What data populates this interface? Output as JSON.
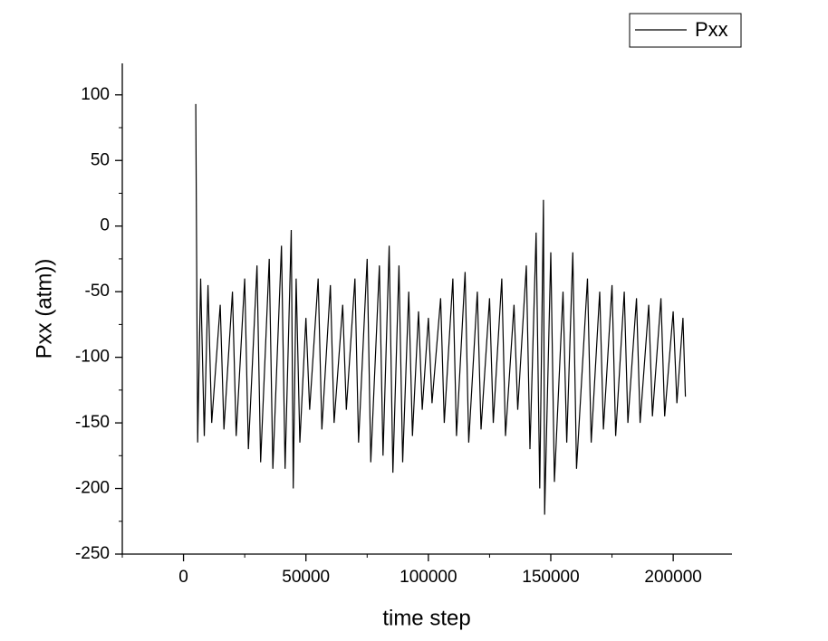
{
  "chart_data": {
    "type": "line",
    "x_label": "time step",
    "y_label": "Pxx (atm))",
    "x": [
      5000,
      5800,
      7000,
      8500,
      10000,
      11500,
      15000,
      16500,
      20000,
      21500,
      25000,
      26500,
      30000,
      31500,
      35000,
      36500,
      40000,
      41500,
      44000,
      44800,
      46000,
      47500,
      50000,
      51500,
      55000,
      56500,
      60000,
      61500,
      65000,
      66500,
      70000,
      71500,
      75000,
      76500,
      80000,
      81500,
      84000,
      85500,
      88000,
      89500,
      92000,
      93500,
      96000,
      97500,
      100000,
      101500,
      105000,
      106500,
      110000,
      111500,
      115000,
      116500,
      120000,
      121500,
      125000,
      126500,
      130000,
      131500,
      135000,
      136500,
      140000,
      141500,
      144000,
      145500,
      147000,
      147500,
      150000,
      151500,
      155000,
      156500,
      159000,
      160500,
      165000,
      166500,
      170000,
      171500,
      175000,
      176500,
      180000,
      181500,
      185000,
      186500,
      190000,
      191500,
      195000,
      196500,
      200000,
      201500,
      204000,
      205000
    ],
    "series": [
      {
        "name": "Pxx",
        "color": "#000000",
        "values": [
          93,
          -165,
          -40,
          -160,
          -45,
          -150,
          -60,
          -155,
          -50,
          -160,
          -40,
          -170,
          -30,
          -180,
          -25,
          -185,
          -15,
          -185,
          -3,
          -200,
          -40,
          -165,
          -70,
          -140,
          -40,
          -155,
          -45,
          -150,
          -60,
          -140,
          -40,
          -165,
          -25,
          -180,
          -30,
          -175,
          -15,
          -188,
          -30,
          -180,
          -50,
          -160,
          -65,
          -140,
          -70,
          -135,
          -55,
          -150,
          -40,
          -160,
          -35,
          -165,
          -50,
          -155,
          -55,
          -150,
          -40,
          -160,
          -60,
          -140,
          -30,
          -170,
          -5,
          -200,
          20,
          -220,
          -20,
          -195,
          -50,
          -165,
          -20,
          -185,
          -40,
          -165,
          -50,
          -155,
          -45,
          -160,
          -50,
          -150,
          -55,
          -150,
          -60,
          -145,
          -55,
          -145,
          -65,
          -135,
          -70,
          -130
        ]
      }
    ],
    "xlim": [
      -25000,
      224000
    ],
    "ylim": [
      -250,
      124
    ],
    "xticks": [
      0,
      50000,
      100000,
      150000,
      200000
    ],
    "xminorticks": [
      -25000,
      25000,
      75000,
      125000,
      175000,
      225000
    ],
    "yticks": [
      -250,
      -200,
      -150,
      -100,
      -50,
      0,
      50,
      100
    ],
    "yminorticks": [
      -225,
      -175,
      -125,
      -75,
      -25,
      25,
      75,
      125
    ],
    "legend": "top-right"
  }
}
